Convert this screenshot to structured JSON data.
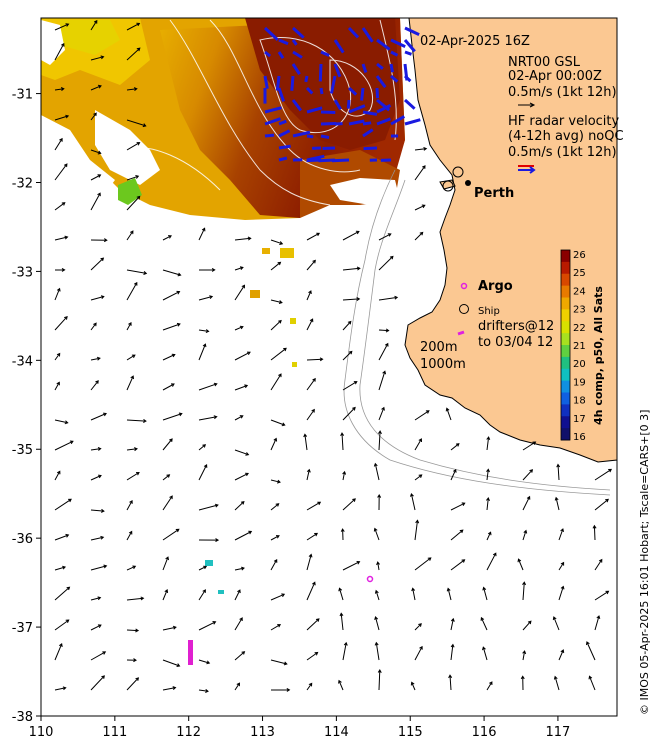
{
  "title": "02-Apr-2025 16Z",
  "legend": {
    "gsl_line1": "NRT00 GSL",
    "gsl_line2": "02-Apr 00:00Z",
    "gsl_scale": "0.5m/s (1kt 12h)",
    "hf_line1": "HF radar velocity",
    "hf_line2": "(4-12h avg) noQC",
    "hf_scale": "0.5m/s (1kt 12h)",
    "argo": "Argo",
    "ship": "Ship",
    "drifters_line1": "drifters@12",
    "drifters_line2": "to 03/04 12",
    "isobath_200": "200m",
    "isobath_1000": "1000m",
    "city": "Perth"
  },
  "colorbar": {
    "label": "4h comp, p50, All Sats",
    "ticks": [
      "26",
      "25",
      "24",
      "23",
      "22",
      "21",
      "20",
      "19",
      "18",
      "17",
      "16"
    ]
  },
  "axes": {
    "x_ticks": [
      "110",
      "111",
      "112",
      "113",
      "114",
      "115",
      "116",
      "117"
    ],
    "y_ticks": [
      "-31",
      "-32",
      "-33",
      "-34",
      "-35",
      "-36",
      "-37",
      "-38"
    ],
    "xlim": [
      110,
      117.8
    ],
    "ylim": [
      -38,
      -30.15
    ]
  },
  "footer": "© IMOS 05-Apr-2025 16:01 Hobart; Tscale=CARS+[0 3]",
  "colors": {
    "land": "#fbc892",
    "hf_arrow": "#1a1ae0",
    "argo": "#e020e0",
    "legend_red": "#e00000",
    "legend_blue": "#1a1ae0"
  }
}
